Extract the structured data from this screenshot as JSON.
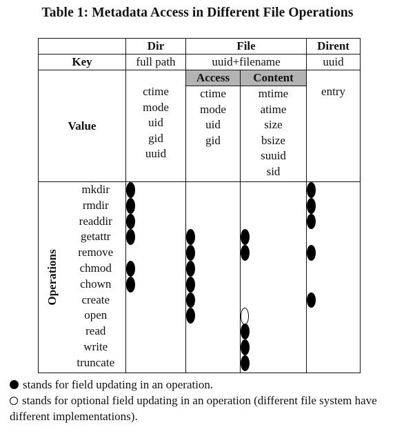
{
  "caption": "Table 1: Metadata Access in Different File Operations",
  "columns": {
    "dir": "Dir",
    "file": "File",
    "dirent": "Dirent",
    "access": "Access",
    "content": "Content"
  },
  "key_row": {
    "label": "Key",
    "dir": "full path",
    "file": "uuid+filename",
    "dirent": "uuid"
  },
  "value_row": {
    "label": "Value",
    "dir": [
      "ctime",
      "mode",
      "uid",
      "gid",
      "uuid"
    ],
    "access": [
      "ctime",
      "mode",
      "uid",
      "gid"
    ],
    "content": [
      "mtime",
      "atime",
      "size",
      "bsize",
      "suuid",
      "sid"
    ],
    "dirent": [
      "entry"
    ]
  },
  "operations_label": "Operations",
  "operations": [
    {
      "name": "mkdir",
      "dir": "full",
      "access": "",
      "content": "",
      "dirent": "full"
    },
    {
      "name": "rmdir",
      "dir": "full",
      "access": "",
      "content": "",
      "dirent": "full"
    },
    {
      "name": "readdir",
      "dir": "full",
      "access": "",
      "content": "",
      "dirent": "full"
    },
    {
      "name": "getattr",
      "dir": "full",
      "access": "full",
      "content": "full",
      "dirent": ""
    },
    {
      "name": "remove",
      "dir": "",
      "access": "full",
      "content": "full",
      "dirent": "full"
    },
    {
      "name": "chmod",
      "dir": "full",
      "access": "full",
      "content": "",
      "dirent": ""
    },
    {
      "name": "chown",
      "dir": "full",
      "access": "full",
      "content": "",
      "dirent": ""
    },
    {
      "name": "create",
      "dir": "",
      "access": "full",
      "content": "",
      "dirent": "full"
    },
    {
      "name": "open",
      "dir": "",
      "access": "full",
      "content": "optional",
      "dirent": ""
    },
    {
      "name": "read",
      "dir": "",
      "access": "",
      "content": "full",
      "dirent": ""
    },
    {
      "name": "write",
      "dir": "",
      "access": "",
      "content": "full",
      "dirent": ""
    },
    {
      "name": "truncate",
      "dir": "",
      "access": "",
      "content": "full",
      "dirent": ""
    }
  ],
  "legend": {
    "full": "stands for field updating in an operation.",
    "optional": "stands for optional field updating in an operation (different file system have different implementations)."
  }
}
